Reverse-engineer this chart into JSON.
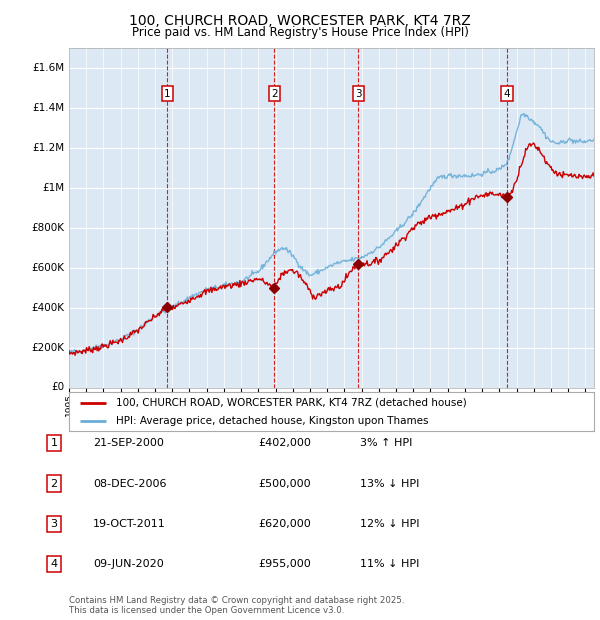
{
  "title": "100, CHURCH ROAD, WORCESTER PARK, KT4 7RZ",
  "subtitle": "Price paid vs. HM Land Registry's House Price Index (HPI)",
  "title_fontsize": 10,
  "subtitle_fontsize": 8.5,
  "background_color": "#ffffff",
  "plot_bg_color": "#dce9f5",
  "grid_color": "#ffffff",
  "ylim": [
    0,
    1700000
  ],
  "yticks": [
    0,
    200000,
    400000,
    600000,
    800000,
    1000000,
    1200000,
    1400000,
    1600000
  ],
  "ytick_labels": [
    "£0",
    "£200K",
    "£400K",
    "£600K",
    "£800K",
    "£1M",
    "£1.2M",
    "£1.4M",
    "£1.6M"
  ],
  "hpi_color": "#6baed6",
  "price_color": "#cc0000",
  "sale_marker_color": "#8b0000",
  "dashed_line_color": "#cc0000",
  "sales": [
    {
      "date_x": 2000.72,
      "price": 402000,
      "label": "1"
    },
    {
      "date_x": 2006.93,
      "price": 500000,
      "label": "2"
    },
    {
      "date_x": 2011.8,
      "price": 620000,
      "label": "3"
    },
    {
      "date_x": 2020.44,
      "price": 955000,
      "label": "4"
    }
  ],
  "sale_table": [
    {
      "num": "1",
      "date": "21-SEP-2000",
      "price": "£402,000",
      "hpi": "3% ↑ HPI"
    },
    {
      "num": "2",
      "date": "08-DEC-2006",
      "price": "£500,000",
      "hpi": "13% ↓ HPI"
    },
    {
      "num": "3",
      "date": "19-OCT-2011",
      "price": "£620,000",
      "hpi": "12% ↓ HPI"
    },
    {
      "num": "4",
      "date": "09-JUN-2020",
      "price": "£955,000",
      "hpi": "11% ↓ HPI"
    }
  ],
  "legend_line1": "100, CHURCH ROAD, WORCESTER PARK, KT4 7RZ (detached house)",
  "legend_line2": "HPI: Average price, detached house, Kingston upon Thames",
  "footer": "Contains HM Land Registry data © Crown copyright and database right 2025.\nThis data is licensed under the Open Government Licence v3.0.",
  "xmin": 1995.0,
  "xmax": 2025.5
}
